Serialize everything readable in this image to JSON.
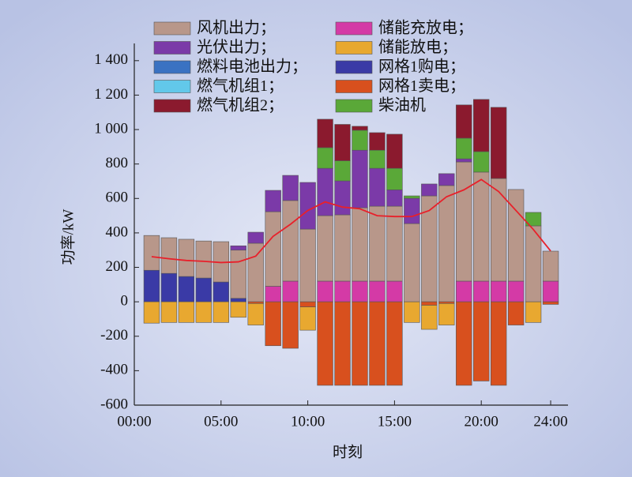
{
  "chart_data": {
    "type": "bar",
    "stacked": true,
    "x_label": "时刻",
    "y_label": "功率/kW",
    "x": [
      1,
      2,
      3,
      4,
      5,
      6,
      7,
      8,
      9,
      10,
      11,
      12,
      13,
      14,
      15,
      16,
      17,
      18,
      19,
      20,
      21,
      22,
      23,
      24
    ],
    "xlim": [
      0,
      25
    ],
    "ylim": [
      -600,
      1500
    ],
    "xticks": [
      {
        "value": 0,
        "label": "00:00"
      },
      {
        "value": 5,
        "label": "05:00"
      },
      {
        "value": 10,
        "label": "10:00"
      },
      {
        "value": 15,
        "label": "15:00"
      },
      {
        "value": 20,
        "label": "20:00"
      },
      {
        "value": 24,
        "label": "24:00"
      }
    ],
    "yticks": [
      -600,
      -400,
      -200,
      0,
      200,
      400,
      600,
      800,
      {
        "value": 1000,
        "label": "1 000"
      },
      {
        "value": 1200,
        "label": "1 200"
      },
      {
        "value": 1400,
        "label": "1 400"
      }
    ],
    "series": [
      {
        "name": "风机出力；",
        "color": "#b8978a",
        "values": [
          202,
          207,
          216,
          215,
          234,
          280,
          340,
          433,
          468,
          422,
          380,
          385,
          426,
          435,
          435,
          454,
          615,
          675,
          692,
          633,
          596,
          532,
          441,
          174
        ]
      },
      {
        "name": "光伏出力；",
        "color": "#7b3aa8",
        "values": [
          0,
          0,
          0,
          0,
          0,
          25,
          64,
          124,
          146,
          271,
          275,
          197,
          334,
          220,
          95,
          147,
          69,
          69,
          18,
          0,
          0,
          0,
          0,
          0
        ]
      },
      {
        "name": "燃料电池出力；",
        "color": "#3a72c2",
        "values": [
          0,
          0,
          0,
          0,
          0,
          0,
          0,
          0,
          0,
          0,
          0,
          0,
          0,
          0,
          0,
          0,
          0,
          0,
          0,
          0,
          0,
          0,
          0,
          0
        ]
      },
      {
        "name": "燃气机组1；",
        "color": "#62c8ea",
        "values": [
          0,
          0,
          0,
          0,
          0,
          0,
          0,
          0,
          0,
          0,
          0,
          0,
          0,
          0,
          0,
          0,
          0,
          0,
          0,
          0,
          0,
          0,
          0,
          0
        ]
      },
      {
        "name": "燃气机组2；",
        "color": "#8b1a2e",
        "values": [
          0,
          0,
          0,
          0,
          0,
          0,
          0,
          0,
          0,
          0,
          165,
          211,
          23,
          102,
          198,
          0,
          0,
          0,
          193,
          303,
          413,
          0,
          0,
          0
        ]
      },
      {
        "name": "储能充放电；",
        "color": "#d43aa6",
        "values": [
          0,
          0,
          0,
          0,
          0,
          0,
          0,
          90,
          120,
          0,
          120,
          120,
          120,
          120,
          120,
          0,
          0,
          0,
          120,
          120,
          120,
          120,
          0,
          120
        ]
      },
      {
        "name": "储能放电；",
        "color": "#e8a830",
        "values": [
          -124,
          -120,
          -120,
          -120,
          -120,
          -90,
          -125,
          0,
          0,
          -135,
          0,
          0,
          0,
          0,
          0,
          -120,
          -140,
          -125,
          0,
          0,
          0,
          0,
          -120,
          0
        ]
      },
      {
        "name": "网格1购电；",
        "color": "#3a3aa6",
        "values": [
          183,
          165,
          147,
          138,
          115,
          20,
          0,
          0,
          0,
          0,
          0,
          0,
          0,
          0,
          0,
          0,
          0,
          0,
          0,
          0,
          0,
          0,
          0,
          0
        ]
      },
      {
        "name": "网格1卖电；",
        "color": "#d8501e",
        "values": [
          0,
          0,
          0,
          0,
          0,
          0,
          -10,
          -255,
          -270,
          -30,
          -485,
          -485,
          -485,
          -485,
          -485,
          0,
          -20,
          -10,
          -485,
          -460,
          -485,
          -135,
          0,
          -15
        ]
      },
      {
        "name": "柴油机",
        "color": "#5aa838",
        "values": [
          0,
          0,
          0,
          0,
          0,
          0,
          0,
          0,
          0,
          0,
          120,
          117,
          116,
          105,
          125,
          14,
          0,
          0,
          120,
          119,
          0,
          0,
          78,
          0
        ]
      }
    ],
    "line": {
      "color": "#e8202a",
      "values": [
        262,
        250,
        240,
        235,
        228,
        232,
        265,
        380,
        450,
        530,
        580,
        550,
        540,
        500,
        495,
        495,
        530,
        610,
        650,
        710,
        640,
        530,
        420,
        295
      ]
    }
  }
}
